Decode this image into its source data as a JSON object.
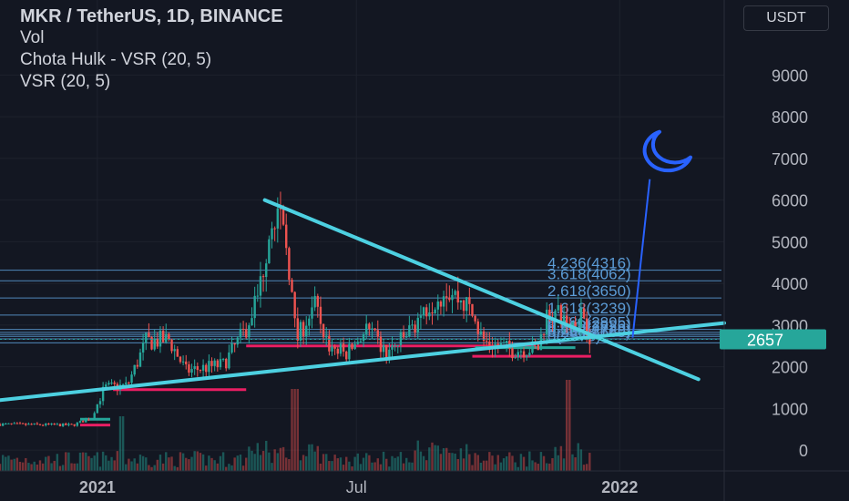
{
  "header": {
    "title": "MKR / TetherUS, 1D, BINANCE",
    "indicators": [
      "Vol",
      "Chota Hulk - VSR (20, 5)",
      "VSR (20, 5)"
    ],
    "currency_button": "USDT"
  },
  "colors": {
    "background": "#131722",
    "up": "#26a69a",
    "down": "#ef5350",
    "trendline": "#4dd0e1",
    "fib": "#5b9bd5",
    "moon": "#2962ff",
    "price_badge": "#26a69a",
    "support_up": "#e91e63"
  },
  "chart_data": {
    "type": "candlestick",
    "y_axis": {
      "ticks": [
        0,
        1000,
        2000,
        3000,
        4000,
        5000,
        6000,
        7000,
        8000,
        9000
      ],
      "range": [
        -500,
        10800
      ]
    },
    "x_axis": {
      "ticks": [
        "2021",
        "Jul",
        "2022"
      ],
      "range": [
        "2020-10-25",
        "2022-03-15"
      ]
    },
    "last_price": 2657,
    "fib_levels": [
      {
        "ratio": "4.236",
        "price": 4316,
        "label": "4.236(4316)"
      },
      {
        "ratio": "3.618",
        "price": 4062,
        "label": "3.618(4062)"
      },
      {
        "ratio": "2.618",
        "price": 3650,
        "label": "2.618(3650)"
      },
      {
        "ratio": "1.618",
        "price": 3239,
        "label": "1.618(3239)"
      },
      {
        "ratio": "0.786",
        "price": 2895,
        "label": "0.786(2895)"
      },
      {
        "ratio": "0.618",
        "price": 2826,
        "label": "0.618(2826)"
      },
      {
        "ratio": "0.5",
        "price": 2777,
        "label": "0.5(2777)"
      },
      {
        "ratio": "0.382",
        "price": 2729,
        "label": "0.382(2729)"
      },
      {
        "ratio": "0.236",
        "price": 2669,
        "label": "0.236(2669)"
      },
      {
        "ratio": "0",
        "price": 2573,
        "label": "0(2573)"
      }
    ],
    "trendlines": [
      {
        "name": "descending resistance",
        "from": [
          "2021-04-28",
          6000
        ],
        "to": [
          "2022-02-25",
          1700
        ]
      },
      {
        "name": "ascending support",
        "from": [
          "2020-10-25",
          1200
        ],
        "to": [
          "2022-03-15",
          3050
        ]
      }
    ],
    "projection_line": {
      "from": [
        "2022-01-10",
        2700
      ],
      "to": [
        "2022-01-22",
        6500
      ]
    },
    "support_lines": [
      {
        "from": "2020-12-20",
        "to": "2021-01-10",
        "price": 740,
        "color": "#26a69a"
      },
      {
        "from": "2020-12-20",
        "to": "2021-01-10",
        "price": 600,
        "color": "#e91e63"
      },
      {
        "from": "2021-01-12",
        "to": "2021-04-15",
        "price": 1450,
        "color": "#e91e63"
      },
      {
        "from": "2021-04-15",
        "to": "2021-11-03",
        "price": 2500,
        "color": "#e91e63"
      },
      {
        "from": "2021-09-22",
        "to": "2021-12-01",
        "price": 2460,
        "color": "#26a69a"
      },
      {
        "from": "2021-09-20",
        "to": "2021-12-12",
        "price": 2250,
        "color": "#e91e63"
      }
    ],
    "price_path": [
      [
        "2020-10-25",
        620
      ],
      [
        "2020-12-15",
        600
      ],
      [
        "2020-12-28",
        780
      ],
      [
        "2021-01-06",
        1500
      ],
      [
        "2021-01-22",
        1550
      ],
      [
        "2021-02-04",
        2600
      ],
      [
        "2021-02-20",
        2650
      ],
      [
        "2021-03-04",
        1900
      ],
      [
        "2021-03-30",
        2050
      ],
      [
        "2021-04-14",
        2850
      ],
      [
        "2021-04-24",
        3800
      ],
      [
        "2021-05-04",
        5900
      ],
      [
        "2021-05-14",
        4800
      ],
      [
        "2021-05-20",
        2600
      ],
      [
        "2021-06-01",
        3500
      ],
      [
        "2021-06-12",
        2500
      ],
      [
        "2021-06-24",
        2300
      ],
      [
        "2021-07-08",
        2900
      ],
      [
        "2021-07-22",
        2300
      ],
      [
        "2021-08-04",
        2700
      ],
      [
        "2021-08-20",
        3500
      ],
      [
        "2021-09-02",
        3900
      ],
      [
        "2021-09-18",
        3400
      ],
      [
        "2021-09-28",
        2600
      ],
      [
        "2021-10-18",
        2400
      ],
      [
        "2021-11-05",
        2450
      ],
      [
        "2021-11-12",
        3400
      ],
      [
        "2021-11-28",
        3000
      ],
      [
        "2021-12-06",
        3350
      ],
      [
        "2021-12-12",
        2657
      ]
    ]
  }
}
